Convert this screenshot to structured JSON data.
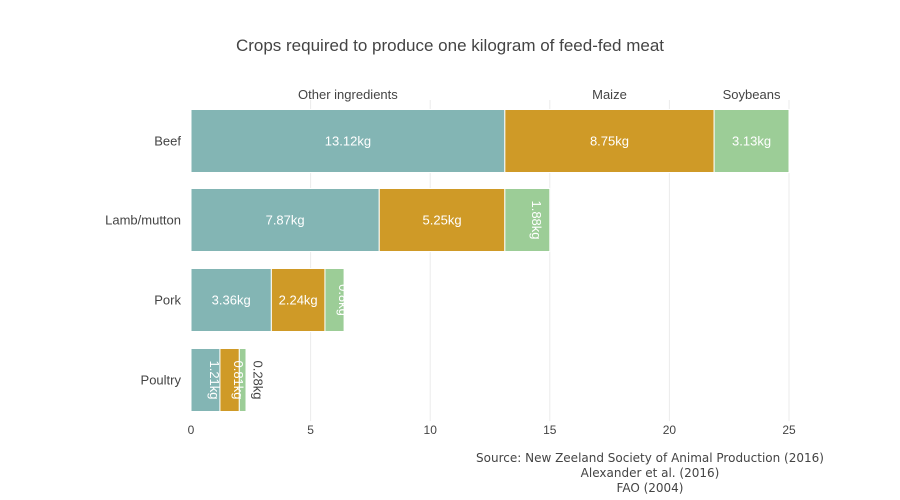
{
  "chart_data": {
    "type": "bar",
    "orientation": "horizontal",
    "stacked": true,
    "title": "Crops required to produce one kilogram of feed-fed meat",
    "xlabel": "",
    "ylabel": "",
    "xlim": [
      0,
      25
    ],
    "xticks": [
      "0",
      "5",
      "10",
      "15",
      "20",
      "25"
    ],
    "grid": true,
    "legend": "none",
    "categories": [
      "Beef",
      "Lamb/mutton",
      "Pork",
      "Poultry"
    ],
    "series": [
      {
        "name": "Other ingredients",
        "color": "#83b5b4",
        "values": [
          13.12,
          7.87,
          3.36,
          1.21
        ],
        "labels": [
          "13.12kg",
          "7.87kg",
          "3.36kg",
          "1.21kg"
        ]
      },
      {
        "name": "Maize",
        "color": "#cf9a27",
        "values": [
          8.75,
          5.25,
          2.24,
          0.81
        ],
        "labels": [
          "8.75kg",
          "5.25kg",
          "2.24kg",
          "0.81kg"
        ]
      },
      {
        "name": "Soybeans",
        "color": "#9ccd97",
        "values": [
          3.13,
          1.88,
          0.8,
          0.28
        ],
        "labels": [
          "3.13kg",
          "1.88kg",
          "0.8kg",
          "0.28kg"
        ]
      }
    ]
  },
  "source_lines": [
    "Source: New Zeeland Society of Animal Production (2016)",
    "Alexander et al. (2016)",
    "FAO (2004)"
  ]
}
